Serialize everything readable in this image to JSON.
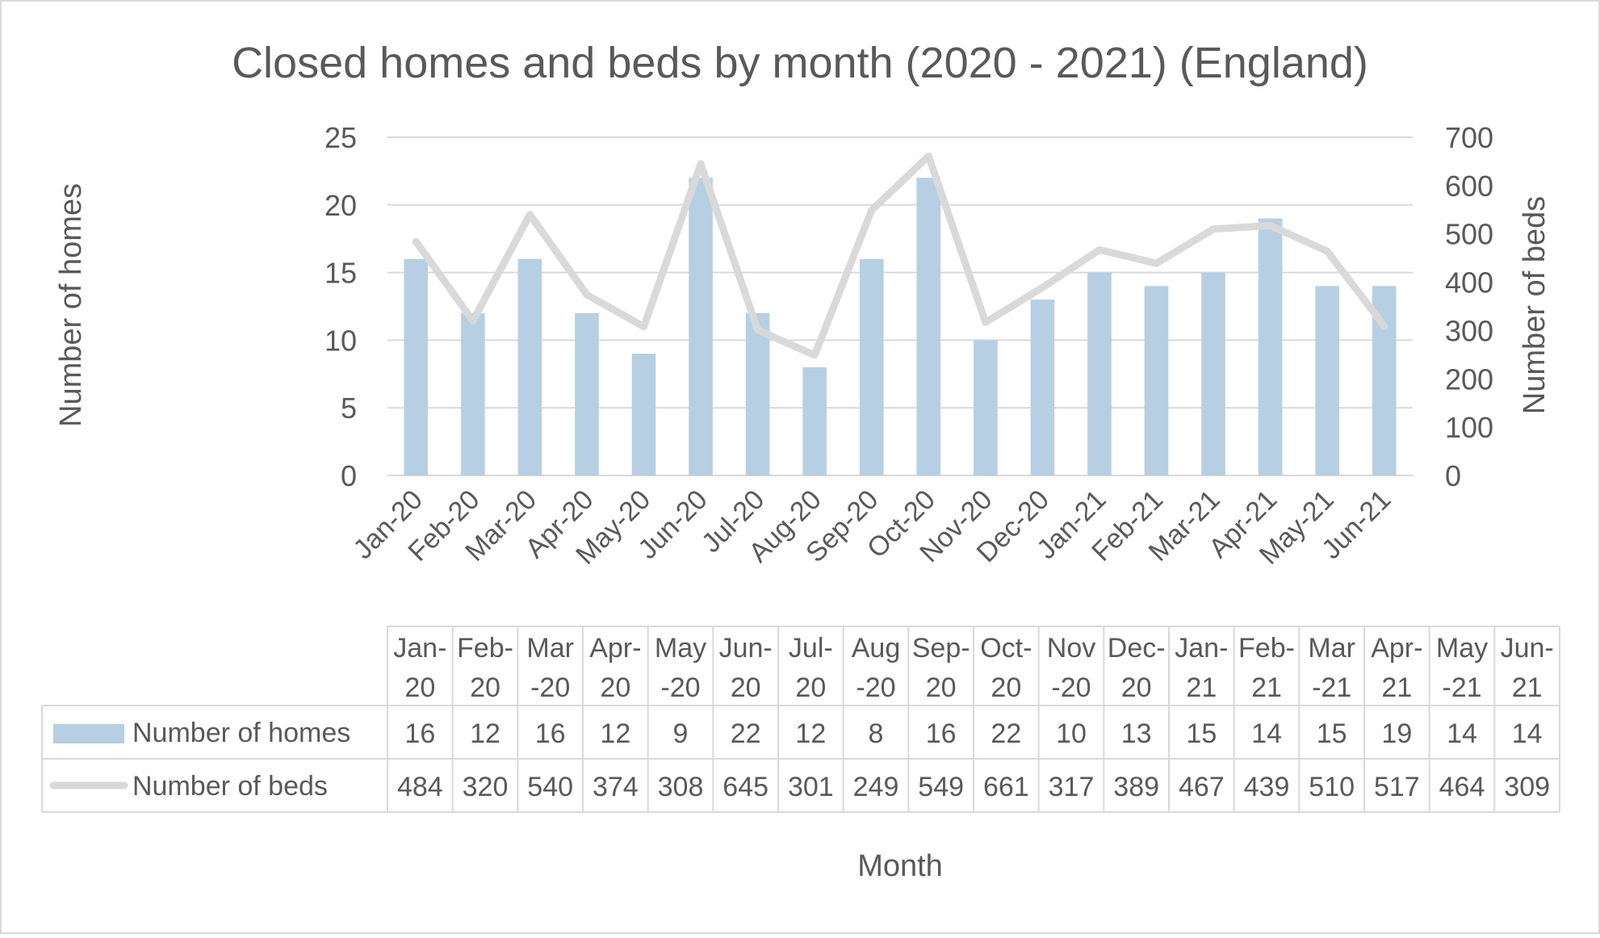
{
  "chart_data": {
    "type": "bar",
    "title": "Closed homes and beds by month (2020 - 2021) (England)",
    "xlabel": "Month",
    "ylabel": "Number of homes",
    "y2label": "Number of beds",
    "ylim": [
      0,
      25
    ],
    "y2lim": [
      0,
      700
    ],
    "yticks": [
      "0",
      "5",
      "10",
      "15",
      "20",
      "25"
    ],
    "y2ticks": [
      "0",
      "100",
      "200",
      "300",
      "400",
      "500",
      "600",
      "700"
    ],
    "grid": true,
    "legend": "data-table",
    "categories": [
      "Jan-20",
      "Feb-20",
      "Mar-20",
      "Apr-20",
      "May-20",
      "Jun-20",
      "Jul-20",
      "Aug-20",
      "Sep-20",
      "Oct-20",
      "Nov-20",
      "Dec-20",
      "Jan-21",
      "Feb-21",
      "Mar-21",
      "Apr-21",
      "May-21",
      "Jun-21"
    ],
    "table_headers": [
      [
        "Jan-",
        "20"
      ],
      [
        "Feb-",
        "20"
      ],
      [
        "Mar",
        "-20"
      ],
      [
        "Apr-",
        "20"
      ],
      [
        "May",
        "-20"
      ],
      [
        "Jun-",
        "20"
      ],
      [
        "Jul-",
        "20"
      ],
      [
        "Aug",
        "-20"
      ],
      [
        "Sep-",
        "20"
      ],
      [
        "Oct-",
        "20"
      ],
      [
        "Nov",
        "-20"
      ],
      [
        "Dec-",
        "20"
      ],
      [
        "Jan-",
        "21"
      ],
      [
        "Feb-",
        "21"
      ],
      [
        "Mar",
        "-21"
      ],
      [
        "Apr-",
        "21"
      ],
      [
        "May",
        "-21"
      ],
      [
        "Jun-",
        "21"
      ]
    ],
    "series": [
      {
        "name": "Number of homes",
        "type": "bar",
        "axis": "left",
        "color": "#b7cfe3",
        "values": [
          16,
          12,
          16,
          12,
          9,
          22,
          12,
          8,
          16,
          22,
          10,
          13,
          15,
          14,
          15,
          19,
          14,
          14
        ]
      },
      {
        "name": "Number of beds",
        "type": "line",
        "axis": "right",
        "color": "#d9d9d9",
        "values": [
          484,
          320,
          540,
          374,
          308,
          645,
          301,
          249,
          549,
          661,
          317,
          389,
          467,
          439,
          510,
          517,
          464,
          309
        ]
      }
    ]
  }
}
